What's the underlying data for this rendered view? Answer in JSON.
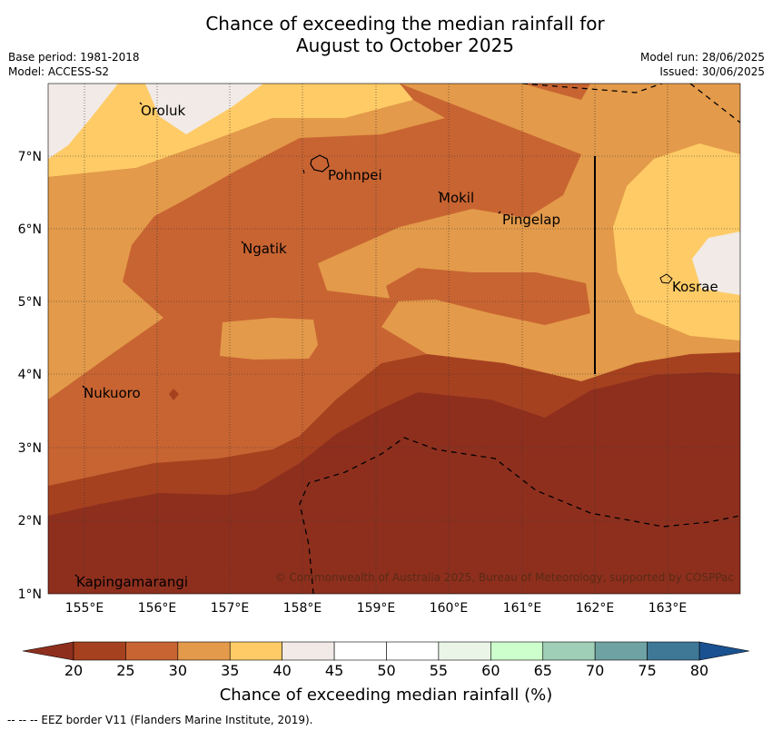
{
  "title": {
    "line1": "Chance of exceeding the median rainfall for",
    "line2": "August to October 2025"
  },
  "meta": {
    "base_period": "Base period: 1981-2018",
    "model": "Model: ACCESS-S2",
    "model_run": "Model run: 28/06/2025",
    "issued": "Issued: 30/06/2025"
  },
  "map": {
    "lon_ticks": [
      "155°E",
      "156°E",
      "157°E",
      "158°E",
      "159°E",
      "160°E",
      "161°E",
      "162°E",
      "163°E"
    ],
    "lat_ticks": [
      "7°N",
      "6°N",
      "5°N",
      "4°N",
      "3°N",
      "2°N",
      "1°N"
    ],
    "places": [
      "Oroluk",
      "Pohnpei",
      "Mokil",
      "Pingelap",
      "Ngatik",
      "Kosrae",
      "Nukuoro",
      "Kapingamarangi"
    ],
    "copyright": "© Commonwealth of Australia 2025, Bureau of Meteorology, supported by COSPPac"
  },
  "colorbar": {
    "ticks": [
      "20",
      "25",
      "30",
      "35",
      "40",
      "45",
      "50",
      "55",
      "60",
      "65",
      "70",
      "75",
      "80"
    ],
    "colors": [
      "#A6411F",
      "#C86432",
      "#E39A4A",
      "#FECB66",
      "#F1EAE6",
      "#FFFFFF",
      "#FFFFFF",
      "#EAF5E8",
      "#CCFFCC",
      "#9FCFB7",
      "#6FA2A3",
      "#3F7797"
    ],
    "low_color": "#8E2F1E",
    "high_color": "#1A5190",
    "label": "Chance of exceeding median rainfall (%)"
  },
  "footnote": "--  --  -- EEZ border V11 (Flanders Marine Institute, 2019)."
}
